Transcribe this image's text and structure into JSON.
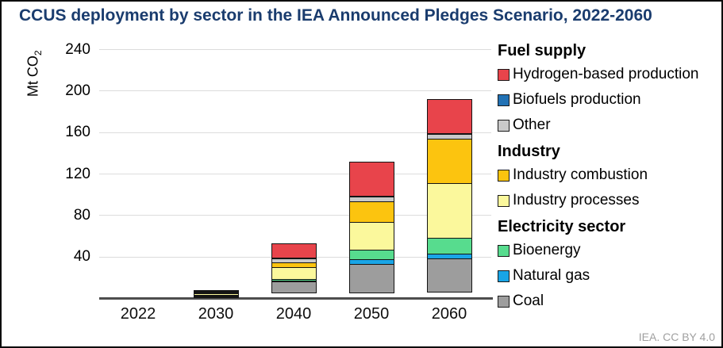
{
  "title": "CCUS deployment by sector in the IEA Announced Pledges Scenario, 2022-2060",
  "credit": "IEA. CC BY 4.0",
  "y_axis": {
    "label_main": "Mt CO",
    "label_sub": "2"
  },
  "chart_data": {
    "type": "bar",
    "stacked": true,
    "title": "CCUS deployment by sector in the IEA Announced Pledges Scenario, 2022-2060",
    "xlabel": "",
    "ylabel": "Mt CO2",
    "ylim": [
      0,
      240
    ],
    "yticks": [
      40,
      80,
      120,
      160,
      200,
      240
    ],
    "grid": true,
    "legend_position": "right",
    "categories": [
      "2022",
      "2030",
      "2040",
      "2050",
      "2060"
    ],
    "series": [
      {
        "key": "coal",
        "legend_label": "Coal",
        "color": "#9d9d9d",
        "values": [
          0,
          0.8,
          11,
          28,
          33
        ]
      },
      {
        "key": "natural_gas",
        "legend_label": "Natural gas",
        "color": "#19a5e6",
        "values": [
          0,
          0.4,
          2,
          5,
          5.5
        ]
      },
      {
        "key": "bioenergy",
        "legend_label": "Bioenergy",
        "color": "#57dc8e",
        "values": [
          0,
          0.4,
          2,
          10,
          16
        ]
      },
      {
        "key": "industry_processes",
        "legend_label": "Industry processes",
        "color": "#fbf89c",
        "values": [
          0,
          2.2,
          12,
          27.5,
          53
        ]
      },
      {
        "key": "industry_combustion",
        "legend_label": "Industry combustion",
        "color": "#fcc40f",
        "values": [
          0,
          1.6,
          6,
          21,
          44
        ]
      },
      {
        "key": "other",
        "legend_label": "Other",
        "color": "#c9c9c9",
        "values": [
          0,
          1.2,
          4.5,
          5,
          5
        ]
      },
      {
        "key": "biofuels",
        "legend_label": "Biofuels production",
        "color": "#2272b5",
        "values": [
          0,
          0.4,
          1,
          1,
          2
        ]
      },
      {
        "key": "hydrogen",
        "legend_label": "Hydrogen-based production",
        "color": "#e8444b",
        "values": [
          0,
          0.6,
          14.5,
          34,
          33
        ]
      }
    ],
    "stack_note": "first series listed is at the bottom of each stacked bar"
  },
  "legend": {
    "groups": [
      {
        "header": "Fuel supply",
        "items": [
          {
            "label": "Hydrogen-based production",
            "series_key": "hydrogen"
          },
          {
            "label": "Biofuels production",
            "series_key": "biofuels"
          },
          {
            "label": "Other",
            "series_key": "other"
          }
        ]
      },
      {
        "header": "Industry",
        "items": [
          {
            "label": "Industry combustion",
            "series_key": "industry_combustion"
          },
          {
            "label": "Industry processes",
            "series_key": "industry_processes"
          }
        ]
      },
      {
        "header": "Electricity sector",
        "items": [
          {
            "label": "Bioenergy",
            "series_key": "bioenergy"
          },
          {
            "label": "Natural gas",
            "series_key": "natural_gas"
          },
          {
            "label": "Coal",
            "series_key": "coal"
          }
        ]
      }
    ]
  },
  "colors": {
    "title_navy": "#1a3c6e",
    "gridline": "#dcdcdc",
    "axis_baseline": "#4d4d4d",
    "credit_gray": "#a0a0a0",
    "frame_border": "#0a0a0a"
  }
}
